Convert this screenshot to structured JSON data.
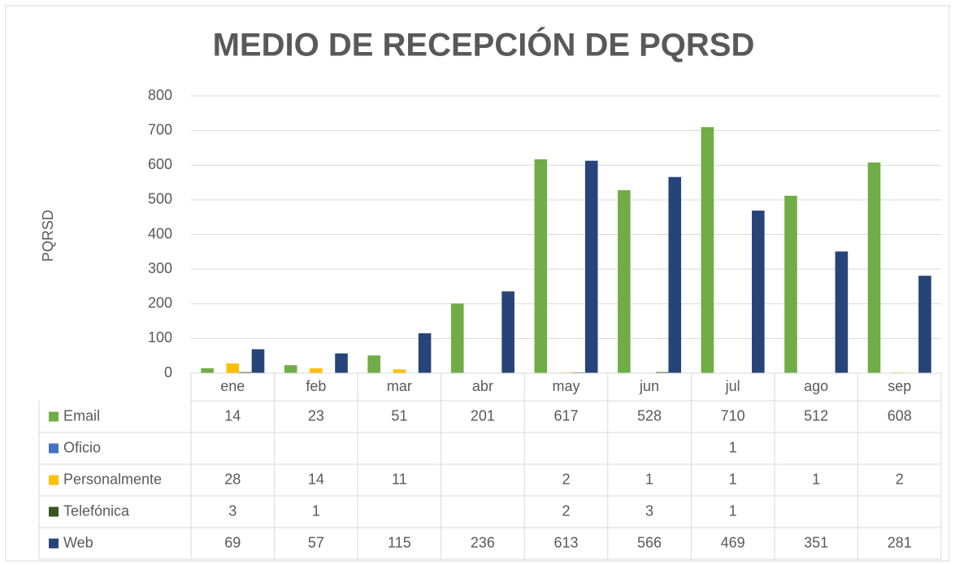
{
  "chart_data": {
    "type": "bar",
    "title": "MEDIO DE RECEPCIÓN DE PQRSD",
    "y_label": "PQRSD",
    "categories": [
      "ene",
      "feb",
      "mar",
      "abr",
      "may",
      "jun",
      "jul",
      "ago",
      "sep"
    ],
    "series": [
      {
        "name": "Email",
        "color": "#70ad47",
        "values": [
          14,
          23,
          51,
          201,
          617,
          528,
          710,
          512,
          608
        ]
      },
      {
        "name": "Oficio",
        "color": "#4472c4",
        "values": [
          null,
          null,
          null,
          null,
          null,
          null,
          1,
          null,
          null
        ]
      },
      {
        "name": "Personalmente",
        "color": "#ffc000",
        "values": [
          28,
          14,
          11,
          null,
          2,
          1,
          1,
          1,
          2
        ]
      },
      {
        "name": "Telefónica",
        "color": "#375623",
        "values": [
          3,
          1,
          null,
          null,
          2,
          3,
          1,
          null,
          null
        ]
      },
      {
        "name": "Web",
        "color": "#264478",
        "values": [
          69,
          57,
          115,
          236,
          613,
          566,
          469,
          351,
          281
        ]
      }
    ],
    "ylim": [
      0,
      800
    ],
    "yticks": [
      0,
      100,
      200,
      300,
      400,
      500,
      600,
      700,
      800
    ],
    "grid": true
  }
}
